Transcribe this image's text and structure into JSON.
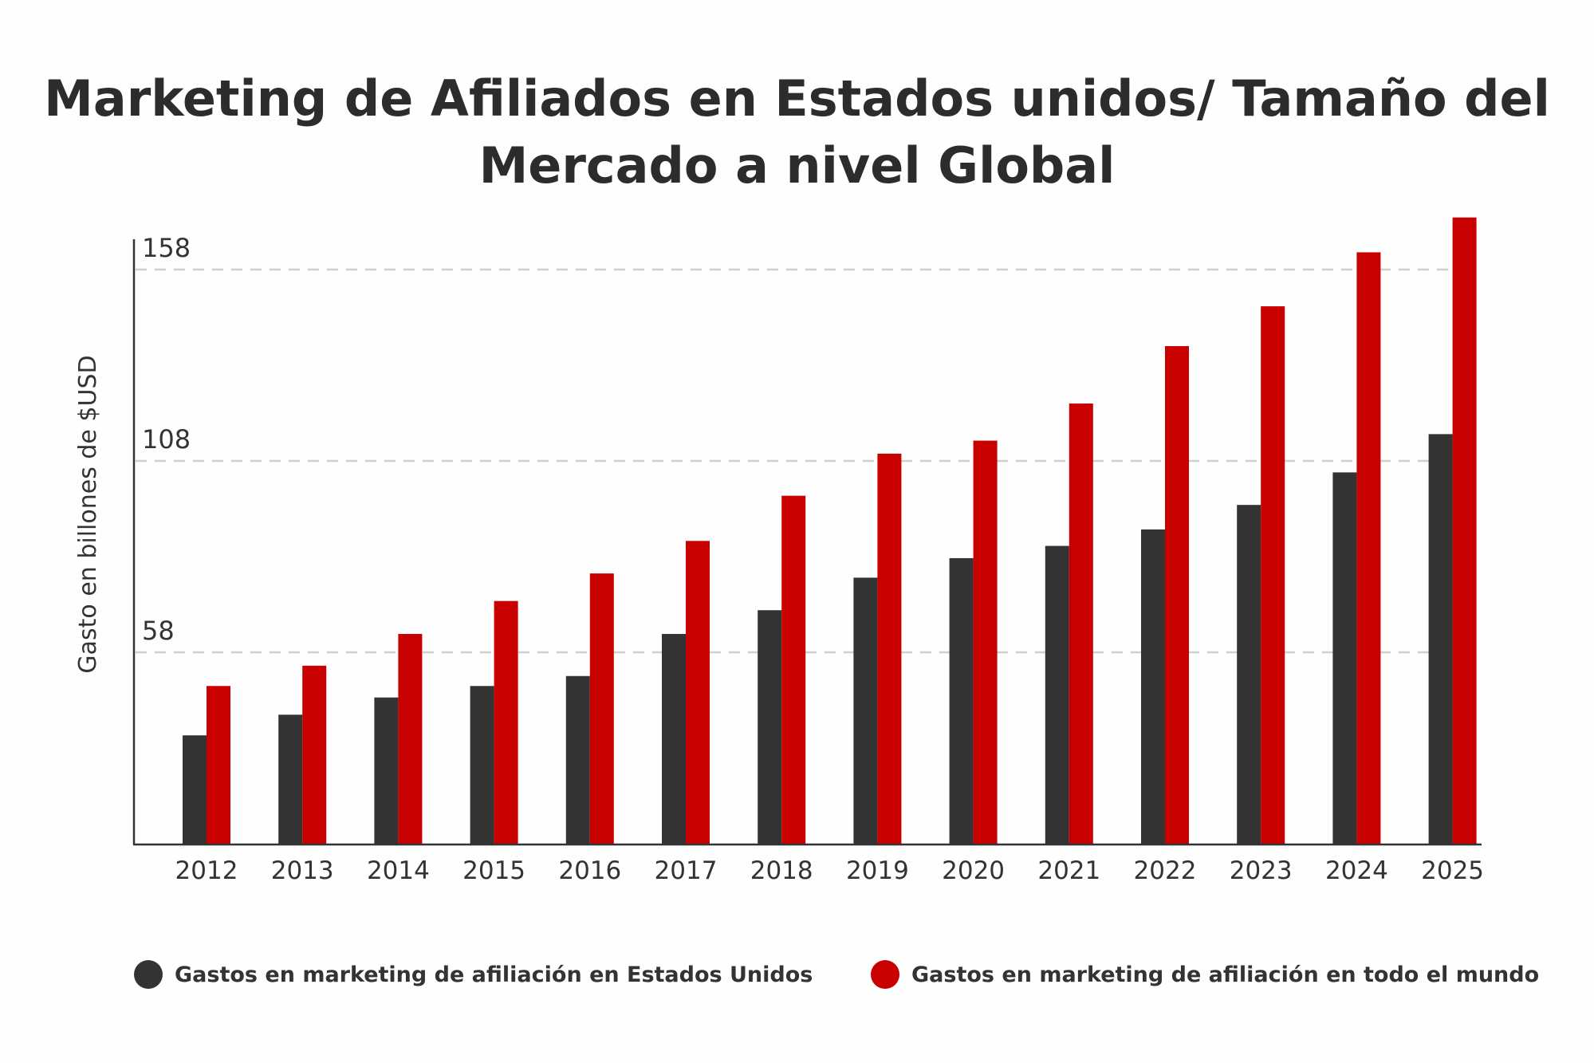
{
  "chart_data": {
    "type": "bar",
    "title": "Marketing de Afiliados en Estados unidos/ Tamaño del Mercado a nivel Global",
    "xlabel": "",
    "ylabel": "Gasto en billones de $USD",
    "categories": [
      "2012",
      "2013",
      "2014",
      "2015",
      "2016",
      "2017",
      "2018",
      "2019",
      "2020",
      "2021",
      "2022",
      "2023",
      "2024",
      "2025"
    ],
    "yticks": [
      58,
      108,
      158
    ],
    "ylim": [
      8,
      172
    ],
    "grid": true,
    "legend": "bottom",
    "series": [
      {
        "name": "Gastos en marketing de afiliación en Estados Unidos",
        "color": "#333333",
        "values": [
          36.3,
          41.7,
          46.2,
          49.2,
          51.8,
          62.8,
          69,
          77.5,
          82.6,
          85.8,
          90.1,
          96.5,
          105,
          115
        ]
      },
      {
        "name": "Gastos en marketing de afiliación en todo el mundo",
        "color": "#c80000",
        "values": [
          49.2,
          54.5,
          62.8,
          71.4,
          78.6,
          87.1,
          98.9,
          109.9,
          113.3,
          123,
          138,
          148.4,
          162.5,
          171.6
        ]
      }
    ]
  }
}
